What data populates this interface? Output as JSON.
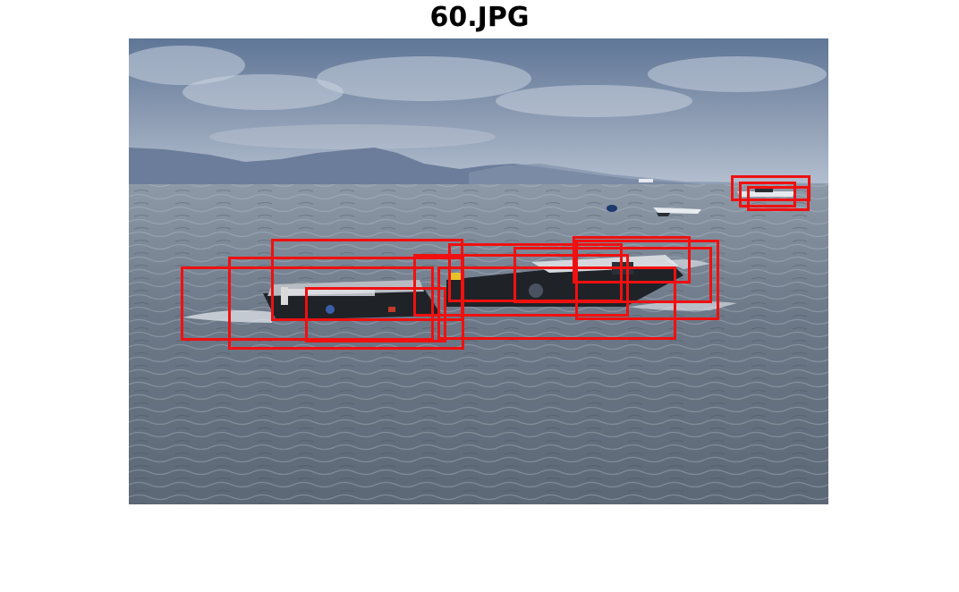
{
  "figure": {
    "title": "60.JPG",
    "box_color": "#f01010"
  },
  "scene": {
    "sky_colors": [
      "#5f7697",
      "#a9b6c9"
    ],
    "water_colors": [
      "#7f8c9b",
      "#5a6675"
    ],
    "mountain_color": "#6b7d9a",
    "boat_color": "#1f2328"
  }
}
